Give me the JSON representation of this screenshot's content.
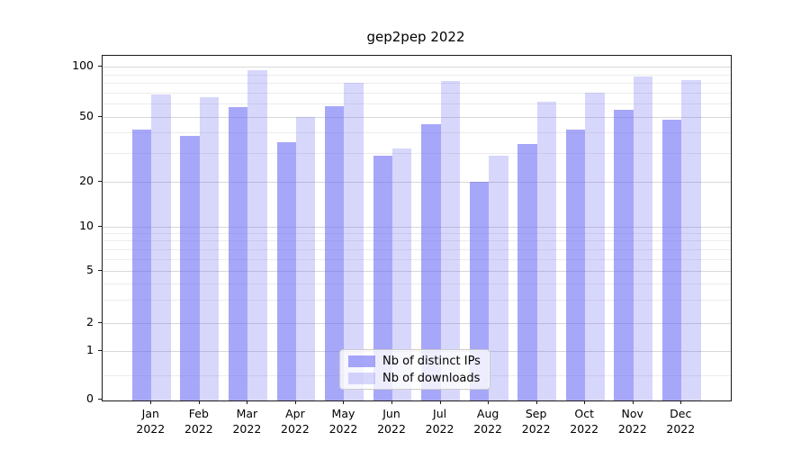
{
  "title": "gep2pep 2022",
  "chart_data": {
    "type": "bar",
    "categories": [
      "Jan 2022",
      "Feb 2022",
      "Mar 2022",
      "Apr 2022",
      "May 2022",
      "Jun 2022",
      "Jul 2022",
      "Aug 2022",
      "Sep 2022",
      "Oct 2022",
      "Nov 2022",
      "Dec 2022"
    ],
    "month_labels": [
      "Jan",
      "Feb",
      "Mar",
      "Apr",
      "May",
      "Jun",
      "Jul",
      "Aug",
      "Sep",
      "Oct",
      "Nov",
      "Dec"
    ],
    "year_label": "2022",
    "series": [
      {
        "name": "Nb of distinct IPs",
        "values": [
          42,
          38,
          57,
          35,
          58,
          29,
          45,
          20,
          34,
          42,
          55,
          48
        ],
        "color": "rgba(108,108,245,0.6)"
      },
      {
        "name": "Nb of downloads",
        "values": [
          68,
          66,
          95,
          50,
          80,
          32,
          82,
          29,
          62,
          70,
          87,
          83
        ],
        "color": "rgba(108,108,245,0.27)"
      }
    ],
    "title": "gep2pep 2022",
    "xlabel": "",
    "ylabel": "",
    "yscale": "symlog",
    "ylim": [
      0,
      115
    ],
    "y_major_ticks": [
      0,
      1,
      2,
      5,
      10,
      20,
      50,
      100
    ],
    "y_tick_labels": [
      "0",
      "1",
      "2",
      "5",
      "10",
      "20",
      "50",
      "100"
    ],
    "y_minor_gridlines": [
      0.5,
      3,
      4,
      6,
      7,
      8,
      9,
      30,
      40,
      60,
      70,
      80,
      90
    ],
    "grid": "horizontal, major and minor, on",
    "legend_position": "lower center",
    "bar_layout": "grouped pairs, dark left / light right"
  },
  "legend": {
    "items": [
      {
        "label": "Nb of distinct IPs",
        "color": "rgba(108,108,245,0.6)"
      },
      {
        "label": "Nb of downloads",
        "color": "rgba(108,108,245,0.27)"
      }
    ]
  },
  "colors": {
    "bar_dark": "rgba(108,108,245,0.6)",
    "bar_light": "rgba(108,108,245,0.27)",
    "grid_major": "#d8d8d8",
    "grid_minor": "#ececec",
    "axis": "#1a1a1a",
    "background": "#ffffff"
  }
}
